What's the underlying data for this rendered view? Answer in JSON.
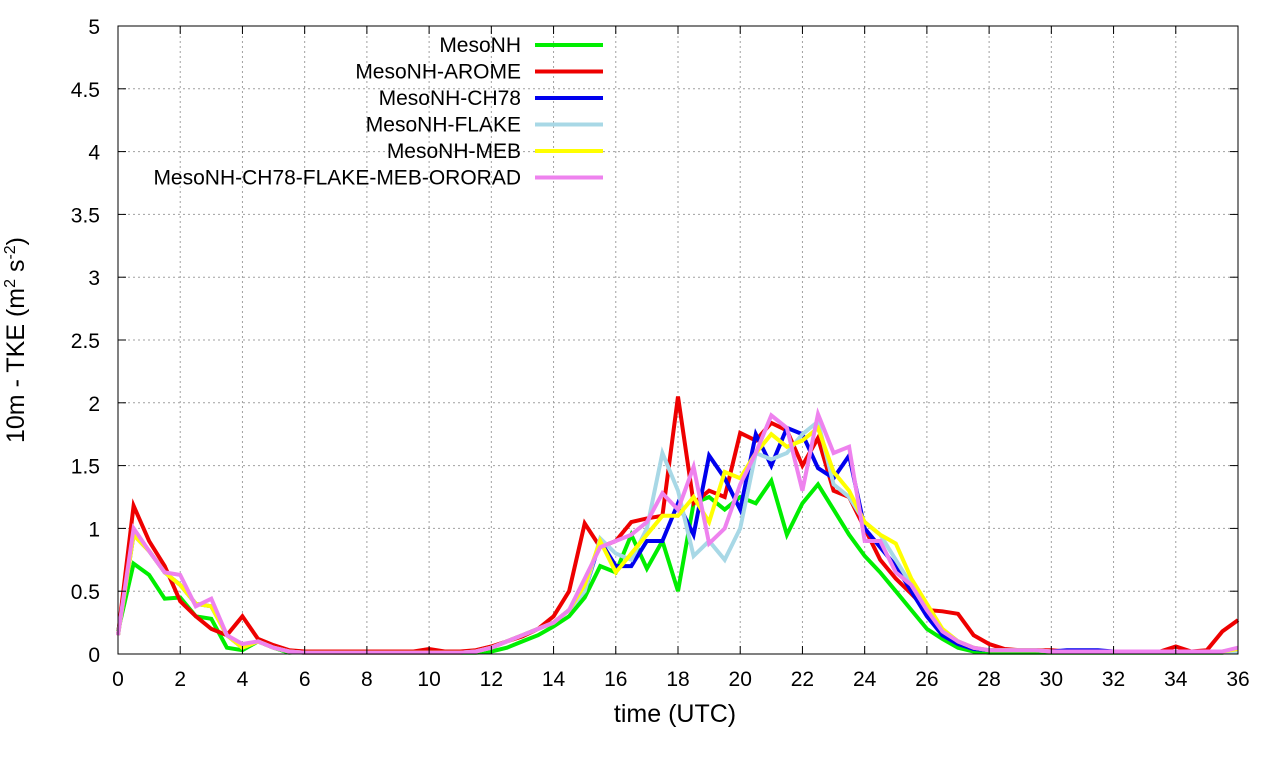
{
  "chart_data": {
    "type": "line",
    "title": "",
    "xlabel": "time (UTC)",
    "ylabel_parts": [
      "10m - TKE (m",
      "2",
      " s",
      "-2",
      ")"
    ],
    "xlim": [
      0,
      36
    ],
    "ylim": [
      0,
      5
    ],
    "xticks": [
      "0",
      "2",
      "4",
      "6",
      "8",
      "10",
      "12",
      "14",
      "16",
      "18",
      "20",
      "22",
      "24",
      "26",
      "28",
      "30",
      "32",
      "34",
      "36"
    ],
    "yticks": [
      "0",
      "0.5",
      "1",
      "1.5",
      "2",
      "2.5",
      "3",
      "3.5",
      "4",
      "4.5",
      "5"
    ],
    "grid": true,
    "legend_position": "top-left",
    "x": [
      0,
      0.5,
      1,
      1.5,
      2,
      2.5,
      3,
      3.5,
      4,
      4.5,
      5,
      5.5,
      6,
      6.5,
      7,
      7.5,
      8,
      8.5,
      9,
      9.5,
      10,
      10.5,
      11,
      11.5,
      12,
      12.5,
      13,
      13.5,
      14,
      14.5,
      15,
      15.5,
      16,
      16.5,
      17,
      17.5,
      18,
      18.5,
      19,
      19.5,
      20,
      20.5,
      21,
      21.5,
      22,
      22.5,
      23,
      23.5,
      24,
      24.5,
      25,
      25.5,
      26,
      26.5,
      27,
      27.5,
      28,
      28.5,
      29,
      29.5,
      30,
      30.5,
      31,
      31.5,
      32,
      32.5,
      33,
      33.5,
      34,
      34.5,
      35,
      35.5,
      36
    ],
    "series": [
      {
        "name": "MesoNH",
        "color": "#00ee00",
        "values": [
          0.18,
          0.72,
          0.63,
          0.44,
          0.45,
          0.3,
          0.28,
          0.05,
          0.03,
          0.1,
          0.05,
          0.01,
          0.02,
          0.02,
          0.01,
          0.01,
          0.01,
          0.01,
          0.01,
          0.01,
          0.01,
          0.01,
          0.01,
          0.01,
          0.02,
          0.05,
          0.1,
          0.15,
          0.22,
          0.3,
          0.45,
          0.7,
          0.65,
          0.95,
          0.68,
          0.9,
          0.5,
          1.2,
          1.25,
          1.15,
          1.25,
          1.2,
          1.38,
          0.95,
          1.2,
          1.35,
          1.15,
          0.95,
          0.78,
          0.65,
          0.5,
          0.35,
          0.2,
          0.12,
          0.05,
          0.02,
          0.01,
          0.01,
          0.01,
          0.01,
          0.01,
          0.01,
          0.01,
          0.01,
          0.01,
          0.01,
          0.01,
          0.01,
          0.01,
          0.01,
          0.01,
          0.01,
          0.03
        ]
      },
      {
        "name": "MesoNH-AROME",
        "color": "#ee0000",
        "values": [
          0.15,
          1.18,
          0.9,
          0.7,
          0.42,
          0.3,
          0.2,
          0.15,
          0.3,
          0.12,
          0.07,
          0.03,
          0.02,
          0.02,
          0.02,
          0.02,
          0.02,
          0.02,
          0.02,
          0.02,
          0.04,
          0.02,
          0.02,
          0.03,
          0.06,
          0.1,
          0.14,
          0.2,
          0.3,
          0.5,
          1.04,
          0.85,
          0.9,
          1.05,
          1.08,
          1.1,
          2.05,
          1.2,
          1.3,
          1.25,
          1.76,
          1.7,
          1.84,
          1.78,
          1.5,
          1.72,
          1.3,
          1.25,
          1.0,
          0.75,
          0.6,
          0.48,
          0.35,
          0.34,
          0.32,
          0.15,
          0.08,
          0.04,
          0.03,
          0.03,
          0.03,
          0.02,
          0.02,
          0.02,
          0.02,
          0.02,
          0.02,
          0.02,
          0.06,
          0.02,
          0.03,
          0.18,
          0.27
        ]
      },
      {
        "name": "MesoNH-CH78",
        "color": "#0000ee",
        "values": [
          0.15,
          0.95,
          0.82,
          0.65,
          0.55,
          0.4,
          0.38,
          0.15,
          0.05,
          0.1,
          0.05,
          0.02,
          0.01,
          0.01,
          0.01,
          0.01,
          0.01,
          0.01,
          0.01,
          0.01,
          0.01,
          0.01,
          0.01,
          0.02,
          0.05,
          0.1,
          0.15,
          0.2,
          0.25,
          0.35,
          0.5,
          0.9,
          0.7,
          0.7,
          0.9,
          0.9,
          1.2,
          0.95,
          1.58,
          1.4,
          1.15,
          1.75,
          1.5,
          1.8,
          1.75,
          1.48,
          1.4,
          1.58,
          1.0,
          0.85,
          0.7,
          0.5,
          0.3,
          0.15,
          0.08,
          0.04,
          0.03,
          0.03,
          0.03,
          0.03,
          0.02,
          0.03,
          0.03,
          0.03,
          0.02,
          0.02,
          0.02,
          0.02,
          0.02,
          0.02,
          0.02,
          0.02,
          0.02
        ]
      },
      {
        "name": "MesoNH-FLAKE",
        "color": "#a8d8e6",
        "values": [
          0.15,
          0.95,
          0.82,
          0.65,
          0.55,
          0.4,
          0.38,
          0.15,
          0.05,
          0.1,
          0.05,
          0.02,
          0.01,
          0.01,
          0.01,
          0.01,
          0.01,
          0.01,
          0.01,
          0.01,
          0.01,
          0.01,
          0.01,
          0.02,
          0.05,
          0.1,
          0.15,
          0.2,
          0.25,
          0.35,
          0.5,
          0.92,
          0.8,
          0.75,
          1.0,
          1.6,
          1.3,
          0.78,
          0.9,
          0.75,
          1.0,
          1.6,
          1.55,
          1.6,
          1.75,
          1.85,
          1.35,
          1.25,
          1.05,
          0.95,
          0.75,
          0.55,
          0.35,
          0.2,
          0.1,
          0.05,
          0.03,
          0.03,
          0.03,
          0.03,
          0.02,
          0.02,
          0.02,
          0.02,
          0.02,
          0.02,
          0.02,
          0.02,
          0.02,
          0.02,
          0.02,
          0.02,
          0.02
        ]
      },
      {
        "name": "MesoNH-MEB",
        "color": "#ffff00",
        "values": [
          0.15,
          0.95,
          0.82,
          0.65,
          0.55,
          0.4,
          0.38,
          0.15,
          0.05,
          0.1,
          0.05,
          0.02,
          0.01,
          0.01,
          0.01,
          0.01,
          0.01,
          0.01,
          0.01,
          0.01,
          0.01,
          0.01,
          0.01,
          0.02,
          0.05,
          0.1,
          0.15,
          0.2,
          0.25,
          0.35,
          0.55,
          0.9,
          0.65,
          0.8,
          0.95,
          1.1,
          1.1,
          1.25,
          1.05,
          1.45,
          1.4,
          1.6,
          1.75,
          1.65,
          1.7,
          1.8,
          1.45,
          1.3,
          1.05,
          0.95,
          0.88,
          0.6,
          0.4,
          0.2,
          0.1,
          0.05,
          0.03,
          0.03,
          0.03,
          0.03,
          0.02,
          0.02,
          0.02,
          0.02,
          0.02,
          0.02,
          0.02,
          0.02,
          0.02,
          0.02,
          0.02,
          0.02,
          0.04
        ]
      },
      {
        "name": "MesoNH-CH78-FLAKE-MEB-ORORAD",
        "color": "#ee82ee",
        "values": [
          0.15,
          1.0,
          0.82,
          0.65,
          0.63,
          0.38,
          0.44,
          0.15,
          0.08,
          0.1,
          0.05,
          0.02,
          0.01,
          0.01,
          0.01,
          0.01,
          0.01,
          0.01,
          0.01,
          0.01,
          0.01,
          0.01,
          0.01,
          0.02,
          0.05,
          0.1,
          0.15,
          0.2,
          0.25,
          0.35,
          0.6,
          0.85,
          0.9,
          0.95,
          1.05,
          1.28,
          1.15,
          1.49,
          0.88,
          1.0,
          1.35,
          1.6,
          1.9,
          1.8,
          1.3,
          1.91,
          1.6,
          1.65,
          0.9,
          0.9,
          0.65,
          0.55,
          0.35,
          0.18,
          0.1,
          0.05,
          0.03,
          0.03,
          0.03,
          0.03,
          0.02,
          0.02,
          0.02,
          0.02,
          0.02,
          0.02,
          0.02,
          0.02,
          0.02,
          0.02,
          0.02,
          0.02,
          0.05
        ]
      }
    ]
  }
}
